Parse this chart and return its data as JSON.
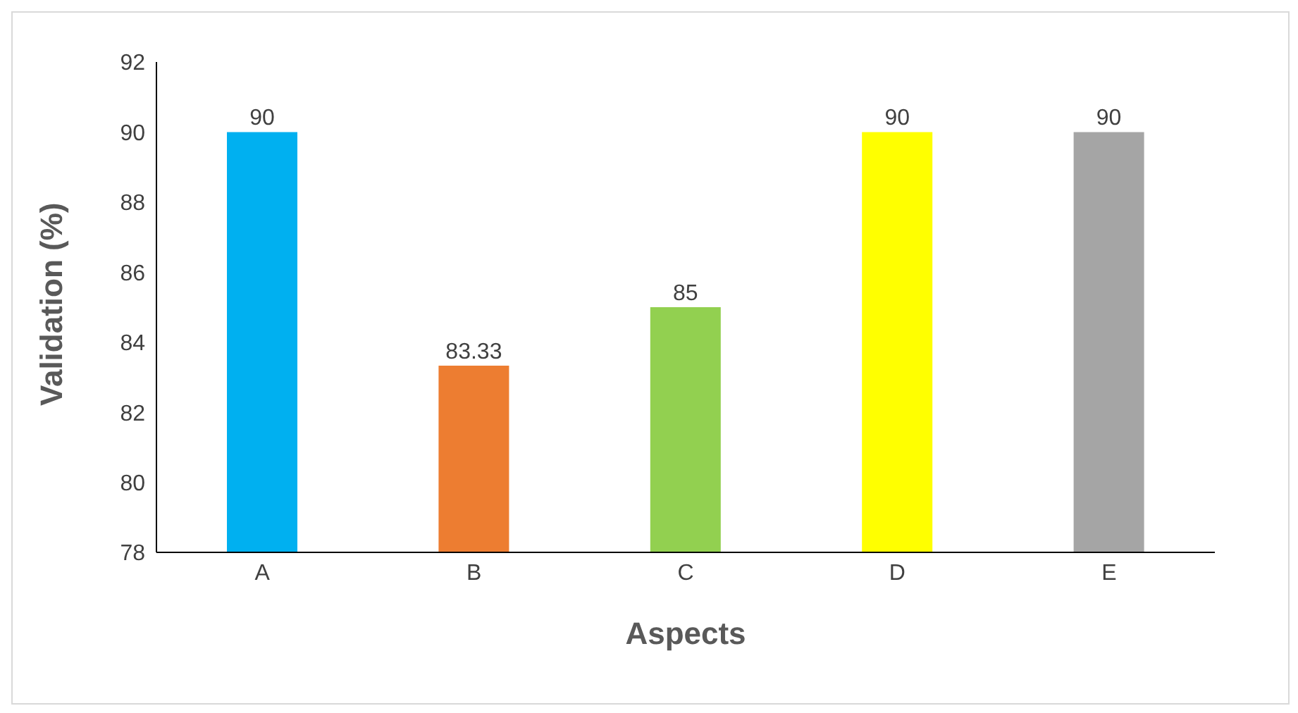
{
  "chart_data": {
    "type": "bar",
    "xlabel": "Aspects",
    "ylabel": "Validation (%)",
    "categories": [
      "A",
      "B",
      "C",
      "D",
      "E"
    ],
    "values": [
      90,
      83.33,
      85,
      90,
      90
    ],
    "colors": [
      "#00b0f0",
      "#ed7d31",
      "#92d050",
      "#ffff00",
      "#a5a5a5"
    ],
    "ylim": [
      78,
      92
    ],
    "yticks": [
      78,
      80,
      82,
      84,
      86,
      88,
      90,
      92
    ],
    "data_labels": true
  }
}
